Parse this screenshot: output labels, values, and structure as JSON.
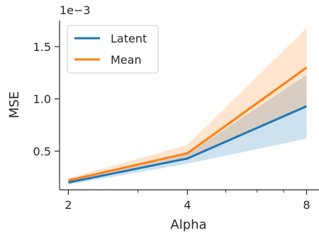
{
  "chart_data": {
    "type": "line",
    "title": "",
    "xlabel": "Alpha",
    "ylabel": "MSE",
    "scale_label": "1e−3",
    "x_scale": "log2",
    "xlim": [
      1.9,
      8.6
    ],
    "ylim": [
      0.13,
      1.75
    ],
    "x_ticks": [
      2,
      4,
      8
    ],
    "x_tick_labels": [
      "2",
      "4",
      "8"
    ],
    "x_minor_ticks": [
      3,
      5,
      6,
      7
    ],
    "y_ticks": [
      0.5,
      1.0,
      1.5
    ],
    "y_tick_labels": [
      "0.5",
      "1.0",
      "1.5"
    ],
    "x": [
      2,
      4,
      8
    ],
    "series": [
      {
        "name": "Latent",
        "color": "#1f77b4",
        "band_color": "#1f77b4",
        "values": [
          0.2,
          0.43,
          0.93
        ],
        "lower": [
          0.18,
          0.38,
          0.62
        ],
        "upper": [
          0.22,
          0.47,
          1.23
        ]
      },
      {
        "name": "Mean",
        "color": "#ff7f0e",
        "band_color": "#ff7f0e",
        "values": [
          0.22,
          0.48,
          1.3
        ],
        "lower": [
          0.2,
          0.42,
          0.93
        ],
        "upper": [
          0.24,
          0.56,
          1.68
        ]
      }
    ],
    "legend_position": "upper-left",
    "grid": false
  }
}
